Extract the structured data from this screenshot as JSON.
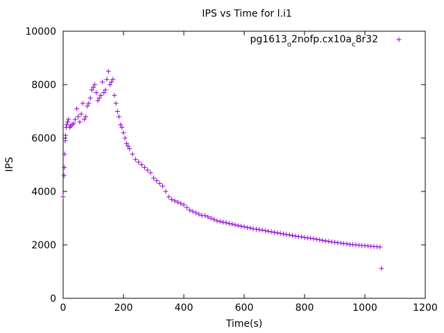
{
  "chart_data": {
    "type": "scatter",
    "title": "IPS vs Time for l.i1",
    "xlabel": "Time(s)",
    "ylabel": "IPS",
    "xlim": [
      0,
      1200
    ],
    "ylim": [
      0,
      10000
    ],
    "x_ticks": [
      0,
      200,
      400,
      600,
      800,
      1000,
      1200
    ],
    "y_ticks": [
      0,
      2000,
      4000,
      6000,
      8000,
      10000
    ],
    "grid": false,
    "legend_position": "top-right",
    "marker": "+",
    "series": [
      {
        "name": "pg1613_o2nofp.cx10a_c8r32",
        "color": "#9400d3",
        "points": [
          [
            0,
            3800
          ],
          [
            3,
            4600
          ],
          [
            4,
            4900
          ],
          [
            5,
            5400
          ],
          [
            7,
            5900
          ],
          [
            8,
            6100
          ],
          [
            10,
            6400
          ],
          [
            12,
            6500
          ],
          [
            15,
            6600
          ],
          [
            18,
            6700
          ],
          [
            22,
            6400
          ],
          [
            25,
            6450
          ],
          [
            30,
            6500
          ],
          [
            35,
            6550
          ],
          [
            40,
            6700
          ],
          [
            45,
            7100
          ],
          [
            50,
            6800
          ],
          [
            55,
            6600
          ],
          [
            60,
            6900
          ],
          [
            65,
            7300
          ],
          [
            70,
            6700
          ],
          [
            75,
            6800
          ],
          [
            80,
            7200
          ],
          [
            85,
            7300
          ],
          [
            90,
            7500
          ],
          [
            95,
            7800
          ],
          [
            100,
            7900
          ],
          [
            105,
            8000
          ],
          [
            110,
            7700
          ],
          [
            115,
            7400
          ],
          [
            120,
            7500
          ],
          [
            125,
            7600
          ],
          [
            130,
            8100
          ],
          [
            135,
            7700
          ],
          [
            140,
            7800
          ],
          [
            145,
            8200
          ],
          [
            150,
            8500
          ],
          [
            155,
            8000
          ],
          [
            160,
            8100
          ],
          [
            165,
            8200
          ],
          [
            170,
            7600
          ],
          [
            175,
            7300
          ],
          [
            180,
            7000
          ],
          [
            185,
            6800
          ],
          [
            190,
            6500
          ],
          [
            195,
            6400
          ],
          [
            200,
            6200
          ],
          [
            205,
            6000
          ],
          [
            210,
            5800
          ],
          [
            215,
            5700
          ],
          [
            220,
            5600
          ],
          [
            230,
            5400
          ],
          [
            240,
            5200
          ],
          [
            250,
            5100
          ],
          [
            260,
            5000
          ],
          [
            270,
            4900
          ],
          [
            280,
            4800
          ],
          [
            290,
            4700
          ],
          [
            300,
            4500
          ],
          [
            310,
            4400
          ],
          [
            320,
            4300
          ],
          [
            330,
            4200
          ],
          [
            340,
            4000
          ],
          [
            350,
            3800
          ],
          [
            360,
            3700
          ],
          [
            370,
            3650
          ],
          [
            380,
            3600
          ],
          [
            390,
            3550
          ],
          [
            400,
            3500
          ],
          [
            410,
            3400
          ],
          [
            420,
            3300
          ],
          [
            430,
            3250
          ],
          [
            440,
            3200
          ],
          [
            450,
            3150
          ],
          [
            460,
            3100
          ],
          [
            470,
            3100
          ],
          [
            480,
            3050
          ],
          [
            490,
            3000
          ],
          [
            500,
            2950
          ],
          [
            510,
            2900
          ],
          [
            520,
            2880
          ],
          [
            530,
            2850
          ],
          [
            540,
            2830
          ],
          [
            550,
            2800
          ],
          [
            560,
            2780
          ],
          [
            570,
            2750
          ],
          [
            580,
            2720
          ],
          [
            590,
            2700
          ],
          [
            600,
            2680
          ],
          [
            610,
            2650
          ],
          [
            620,
            2630
          ],
          [
            630,
            2600
          ],
          [
            640,
            2590
          ],
          [
            650,
            2570
          ],
          [
            660,
            2550
          ],
          [
            670,
            2530
          ],
          [
            680,
            2510
          ],
          [
            690,
            2490
          ],
          [
            700,
            2470
          ],
          [
            710,
            2450
          ],
          [
            720,
            2430
          ],
          [
            730,
            2410
          ],
          [
            740,
            2390
          ],
          [
            750,
            2370
          ],
          [
            760,
            2350
          ],
          [
            770,
            2330
          ],
          [
            780,
            2310
          ],
          [
            790,
            2300
          ],
          [
            800,
            2280
          ],
          [
            810,
            2260
          ],
          [
            820,
            2250
          ],
          [
            830,
            2230
          ],
          [
            840,
            2210
          ],
          [
            850,
            2190
          ],
          [
            860,
            2170
          ],
          [
            870,
            2150
          ],
          [
            880,
            2130
          ],
          [
            890,
            2110
          ],
          [
            900,
            2100
          ],
          [
            910,
            2080
          ],
          [
            920,
            2070
          ],
          [
            930,
            2050
          ],
          [
            940,
            2040
          ],
          [
            950,
            2020
          ],
          [
            960,
            2010
          ],
          [
            970,
            2000
          ],
          [
            980,
            1990
          ],
          [
            990,
            1980
          ],
          [
            1000,
            1970
          ],
          [
            1010,
            1960
          ],
          [
            1020,
            1950
          ],
          [
            1030,
            1940
          ],
          [
            1040,
            1930
          ],
          [
            1050,
            1920
          ],
          [
            1055,
            1120
          ]
        ]
      }
    ]
  }
}
